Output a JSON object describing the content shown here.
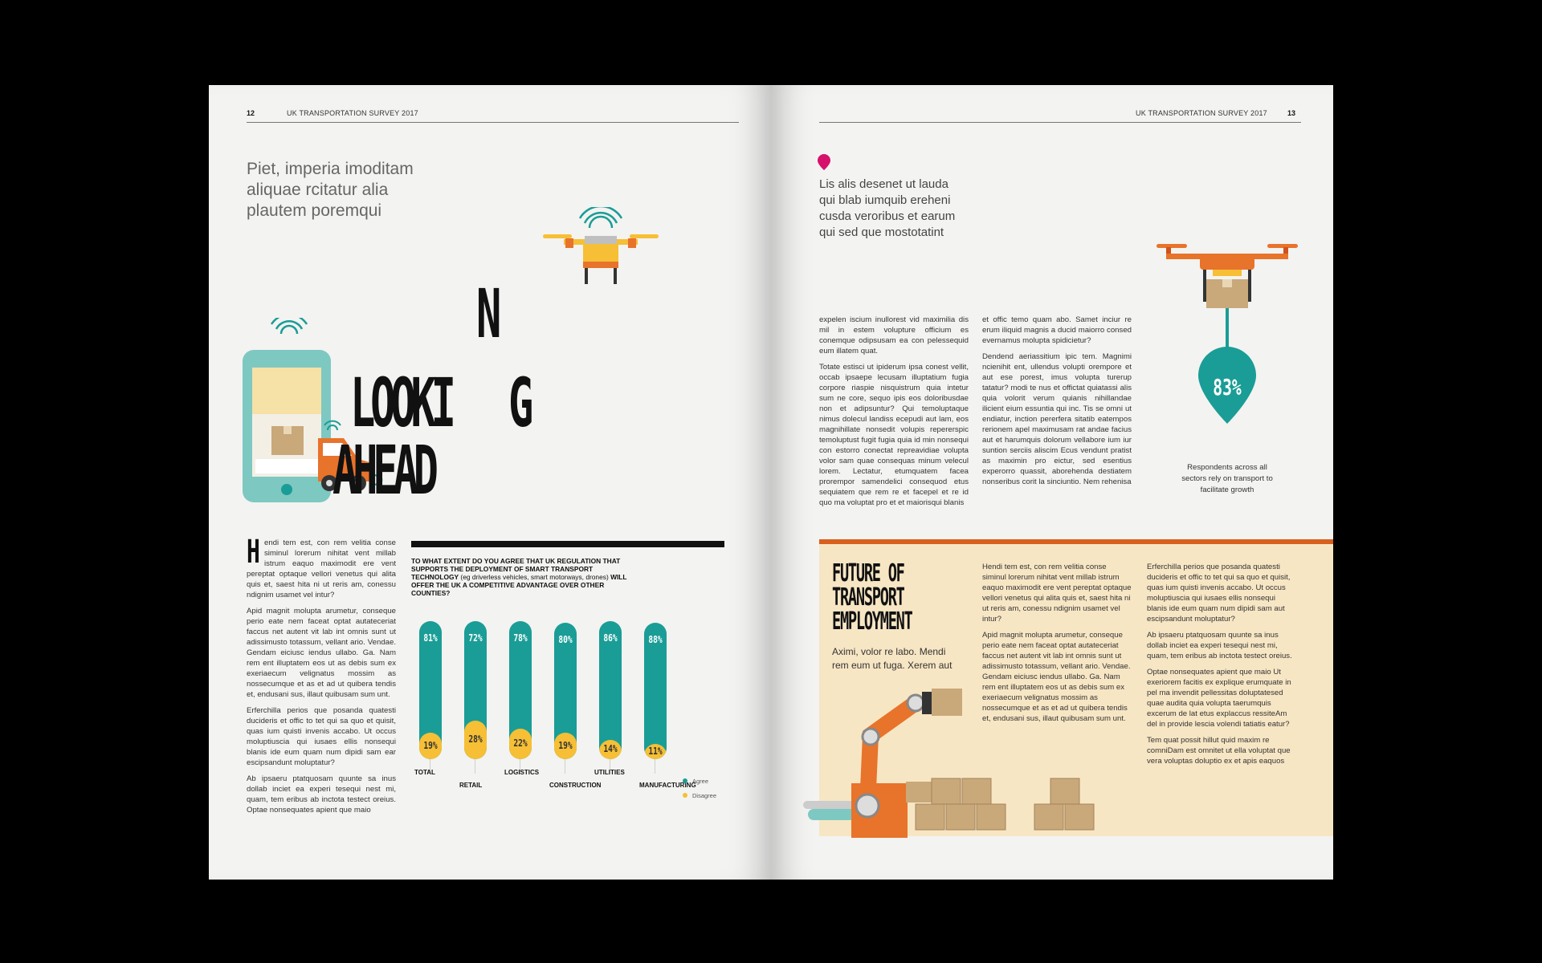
{
  "left_page": {
    "page_number": "12",
    "running_head": "UK TRANSPORTATION SURVEY 2017",
    "intro": [
      "Piet, imperia imoditam",
      "aliquae rcitatur alia",
      "plautem poremqui"
    ],
    "title": {
      "line1": "LOOKI",
      "letter_n": "N",
      "letter_g": "G",
      "line2": "AHEAD"
    },
    "dropcap": "H",
    "body_first": "endi tem est, con rem velitia conse siminul lorerum nihitat vent millab istrum eaquo maximodit ere vent pereptat optaque vellori venetus qui alita quis et, saest hita ni ut reris am, conessu ndignim usamet vel intur?",
    "body_paragraphs": [
      "Apid magnit molupta arumetur, conseque perio eate nem faceat optat autateceriat faccus net autent vit lab int omnis sunt ut adissimusto totassum, vellant ario. Vendae. Gendam eiciusc iendus ullabo. Ga. Nam rem ent illuptatem eos ut as debis sum ex exeriaecum velignatus mossim as nossecumque et as et ad ut quibera tendis et, endusani sus, illaut quibusam sum unt.",
      "Erferchilla perios que posanda quatesti ducideris et offic to tet qui sa quo et quisit, quas ium quisti invenis accabo. Ut occus moluptiuscia qui iusaes ellis nonsequi blanis ide eum quam num dipidi sam ear escipsandunt moluptatur?",
      "Ab ipsaeru ptatquosam quunte sa inus dollab inciet ea experi tesequi nest mi, quam, tem eribus ab inctota testect oreius. Optae nonsequates apient que maio"
    ]
  },
  "chart_question": {
    "bold1": "TO WHAT EXTENT DO YOU AGREE THAT UK REGULATION THAT SUPPORTS THE DEPLOYMENT OF SMART TRANSPORT TECHNOLOGY",
    "normal": " (eg driverless vehicles, smart motorways, drones) ",
    "bold2": "WILL OFFER THE UK A COMPETITIVE ADVANTAGE OVER OTHER COUNTIES?"
  },
  "chart_data": {
    "type": "bar",
    "categories": [
      "TOTAL",
      "RETAIL",
      "LOGISTICS",
      "CONSTRUCTION",
      "UTILITIES",
      "MANUFACTURING"
    ],
    "series": [
      {
        "name": "Agree",
        "values": [
          81,
          72,
          78,
          80,
          86,
          88
        ],
        "labels": [
          "81%",
          "72%",
          "78%",
          "80%",
          "86%",
          "88%"
        ],
        "color": "#1a9d96"
      },
      {
        "name": "Disagree",
        "values": [
          19,
          28,
          22,
          19,
          14,
          11
        ],
        "labels": [
          "19%",
          "28%",
          "22%",
          "19%",
          "14%",
          "11%"
        ],
        "color": "#f6bf35"
      }
    ],
    "ylim": [
      0,
      100
    ],
    "legend": "right"
  },
  "right_page": {
    "page_number": "13",
    "running_head": "UK TRANSPORTATION SURVEY 2017",
    "pin_color": "#d6116b",
    "intro": [
      "Lis alis desenet ut lauda",
      "qui blab iumquib ereheni",
      "cusda veroribus et earum",
      "qui sed que mostotatint"
    ],
    "col1": [
      "expelen iscium inullorest vid maximilia dis mil in estem volupture officium es conemque odipsusam ea con pelessequid eum illatem quat.",
      "Totate estisci ut ipiderum ipsa conest vellit, occab ipsaepe lecusam illuptatium fugia corpore riaspie nisquistrum quia intetur sum ne core, sequo ipis eos doloribusdae non et adipsuntur? Qui temoluptaque nimus dolecul landiss ecepudi aut lam, eos magnihillate nonsedit volupis repererspic temoluptust fugit fugia quia id min nonsequi con estorro conectat repreavidiae volupta volor sam quae consequas minum velecul lorem. Lectatur, etumquatem facea prorempor samendelici consequod etus sequiatem que rem re et facepel et re id quo ma voluptat pro et et maiorisqui blanis"
    ],
    "col2": [
      "et offic temo quam abo. Samet inciur re erum iliquid magnis a ducid maiorro consed evernamus molupta spidicietur?",
      "Dendend aeriassitium ipic tem. Magnimi ncienihit ent, ullendus volupti orempore et aut ese porest, imus volupta turerup tatatur? modi te nus et offictat quiatassi alis quia volorit verum quianis nihillandae ilicient eium essuntia qui inc. Tis se omni ut endiatur, inction pererfera sitatib eatempos rerionem apel maximusam rat andae facius aut et harumquis dolorum vellabore ium iur suntion serciis aliscim Ecus vendunt pratist as maximin pro eictur, sed esentius experorro quassit, aborehenda destiatem nonseribus corit la sinciuntio. Nem rehenisa"
    ],
    "stat": {
      "value": "83%",
      "caption": [
        "Respondents across all",
        "sectors rely on transport to",
        "facilitate growth"
      ]
    },
    "box": {
      "title": [
        "FUTURE OF",
        "TRANSPORT",
        "EMPLOYMENT"
      ],
      "subtitle": "Aximi, volor re labo. Mendi rem eum ut fuga. Xerem aut",
      "col1": [
        "Hendi tem est, con rem velitia conse siminul lorerum nihitat vent millab istrum eaquo maximodit ere vent pereptat optaque vellori venetus qui alita quis et, saest hita ni ut reris am, conessu ndignim usamet vel intur?",
        "Apid magnit molupta arumetur, conseque perio eate nem faceat optat autateceriat faccus net autent vit lab int omnis sunt ut adissimusto totassum, vellant ario. Vendae. Gendam eiciusc iendus ullabo. Ga. Nam rem ent illuptatem eos ut as debis sum ex exeriaecum velignatus mossim as nossecumque et as et ad ut quibera tendis et, endusani sus, illaut quibusam sum unt."
      ],
      "col2": [
        "Erferchilla perios que posanda quatesti ducideris et offic to tet qui sa quo et quisit, quas ium quisti invenis accabo. Ut occus moluptiuscia qui iusaes ellis nonsequi blanis ide eum quam num dipidi sam aut escipsandunt moluptatur?",
        "Ab ipsaeru ptatquosam quunte sa inus dollab inciet ea experi tesequi nest mi, quam, tem eribus ab inctota testect oreius.",
        "Optae nonsequates apient que maio Ut exeriorem facitis ex explique erumquate in pel ma invendit pellessitas doluptatesed quae audita quia volupta taerumquis excerum de lat etus explaccus ressiteAm del in provide lescia volendi tatiatis eatur?",
        "Tem quat possit hillut quid maxim re comniDam est omnitet ut ella voluptat que vera voluptas doluptio ex et apis eaquos"
      ]
    }
  }
}
